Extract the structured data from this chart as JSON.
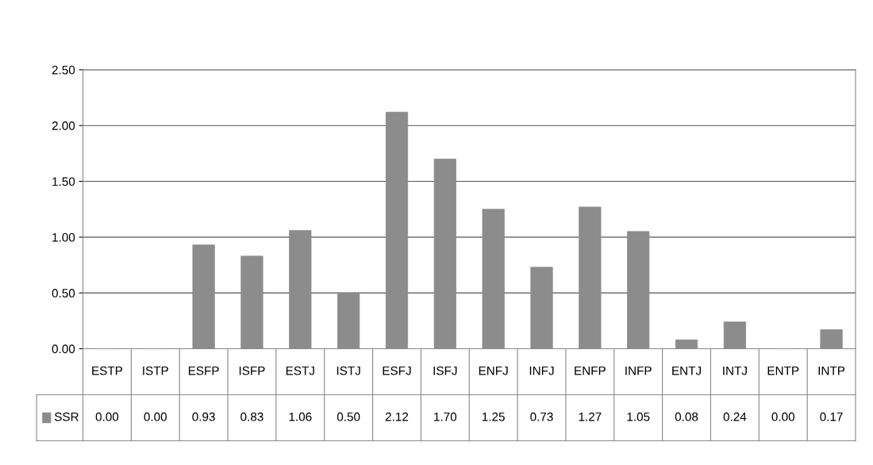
{
  "chart_data": {
    "type": "bar",
    "categories": [
      "ESTP",
      "ISTP",
      "ESFP",
      "ISFP",
      "ESTJ",
      "ISTJ",
      "ESFJ",
      "ISFJ",
      "ENFJ",
      "INFJ",
      "ENFP",
      "INFP",
      "ENTJ",
      "INTJ",
      "ENTP",
      "INTP"
    ],
    "series": [
      {
        "name": "SSR",
        "color": "#8c8c8c",
        "values": [
          0.0,
          0.0,
          0.93,
          0.83,
          1.06,
          0.5,
          2.12,
          1.7,
          1.25,
          0.73,
          1.27,
          1.05,
          0.08,
          0.24,
          0.0,
          0.17
        ],
        "value_labels": [
          "0.00",
          "0.00",
          "0.93",
          "0.83",
          "1.06",
          "0.50",
          "2.12",
          "1.70",
          "1.25",
          "0.73",
          "1.27",
          "1.05",
          "0.08",
          "0.24",
          "0.00",
          "0.17"
        ]
      }
    ],
    "ylim": [
      0,
      2.5
    ],
    "yticks": [
      {
        "value": 0,
        "label": "0.00"
      },
      {
        "value": 0.5,
        "label": "0.50"
      },
      {
        "value": 1,
        "label": "1.00"
      },
      {
        "value": 1.5,
        "label": "1.50"
      },
      {
        "value": 2,
        "label": "2.00"
      },
      {
        "value": 2.5,
        "label": "2.50"
      }
    ],
    "grid": "y"
  }
}
